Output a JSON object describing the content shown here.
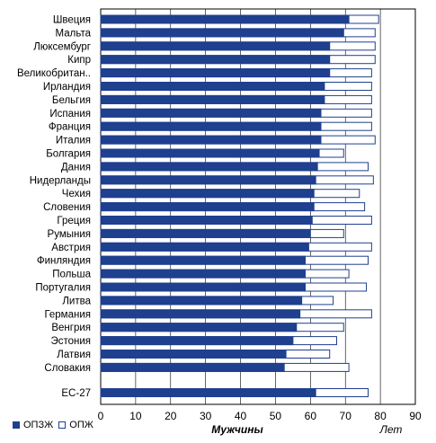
{
  "chart_data": {
    "type": "bar",
    "orientation": "horizontal",
    "title": "",
    "xlabel": "Мужчины",
    "unit_label": "Лет",
    "xlim": [
      0,
      90
    ],
    "xticks": [
      0,
      10,
      20,
      30,
      40,
      50,
      60,
      70,
      80,
      90
    ],
    "grid": true,
    "colors": {
      "opzzh": "#1f3f8f",
      "opzh": "#ffffff",
      "outline": "#1f3f8f"
    },
    "categories": [
      "Швеция",
      "Мальта",
      "Люксембург",
      "Кипр",
      "Великобритан..",
      "Ирландия",
      "Бельгия",
      "Испания",
      "Франция",
      "Италия",
      "Болгария",
      "Дания",
      "Нидерланды",
      "Чехия",
      "Словения",
      "Греция",
      "Румыния",
      "Австрия",
      "Финляндия",
      "Польша",
      "Португалия",
      "Литва",
      "Германия",
      "Венгрия",
      "Эстония",
      "Латвия",
      "Словакия",
      "ЕС-27"
    ],
    "series": [
      {
        "name": "ОПЗЖ",
        "values": [
          71.0,
          69.5,
          65.5,
          65.5,
          65.5,
          64.0,
          64.0,
          63.0,
          63.0,
          63.0,
          62.5,
          62.0,
          61.5,
          61.0,
          61.0,
          60.5,
          60.0,
          59.5,
          58.5,
          58.5,
          58.5,
          57.5,
          57.0,
          56.0,
          55.0,
          53.0,
          52.5,
          61.5
        ]
      },
      {
        "name": "ОПЖ",
        "values": [
          79.5,
          78.5,
          78.5,
          78.5,
          77.5,
          77.5,
          77.5,
          77.5,
          77.5,
          78.5,
          69.5,
          76.5,
          78.0,
          74.0,
          75.5,
          77.5,
          69.5,
          77.5,
          76.5,
          71.0,
          76.0,
          66.5,
          77.5,
          69.5,
          67.5,
          65.5,
          71.0,
          76.5
        ]
      }
    ]
  }
}
